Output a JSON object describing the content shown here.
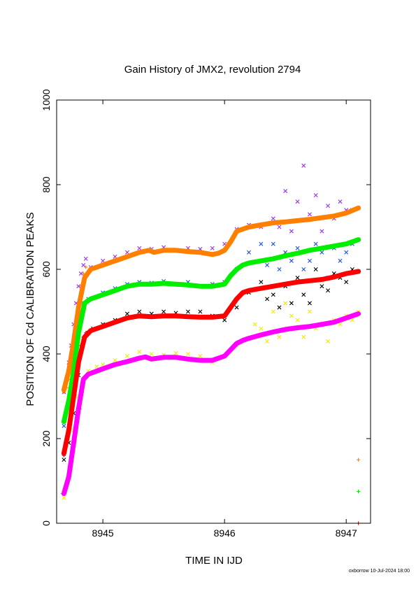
{
  "chart_data": {
    "type": "scatter",
    "title": "Gain History of JMX2, revolution 2794",
    "xlabel": "TIME IN IJD",
    "ylabel": "POSITION OF Cd CALIBRATION PEAKS",
    "xlim": [
      8944.62,
      8947.2
    ],
    "ylim": [
      0,
      1000
    ],
    "xticks": [
      {
        "value": 8945,
        "label": "8945"
      },
      {
        "value": 8946,
        "label": "8946"
      },
      {
        "value": 8947,
        "label": "8947"
      }
    ],
    "yticks": [
      {
        "value": 0,
        "label": "0"
      },
      {
        "value": 200,
        "label": "200"
      },
      {
        "value": 400,
        "label": "400"
      },
      {
        "value": 600,
        "label": "600"
      },
      {
        "value": 800,
        "label": "800"
      },
      {
        "value": 1000,
        "label": "1000"
      }
    ],
    "grid": false,
    "legend": "none",
    "series": [
      {
        "kind": "scatter",
        "marker": "x",
        "color": "#9a2ff0",
        "x": [
          8944.68,
          8944.7,
          8944.72,
          8944.74,
          8944.76,
          8944.78,
          8944.8,
          8944.82,
          8944.84,
          8944.86,
          8944.9,
          8945.0,
          8945.1,
          8945.2,
          8945.3,
          8945.4,
          8945.5,
          8945.6,
          8945.7,
          8945.8,
          8945.9,
          8946.0,
          8946.1,
          8946.2,
          8946.3,
          8946.4,
          8946.45,
          8946.5,
          8946.55,
          8946.6,
          8946.65,
          8946.7,
          8946.75,
          8946.8,
          8946.85,
          8946.9,
          8946.95,
          8947.0,
          8947.05,
          8947.1
        ],
        "y": [
          310,
          340,
          380,
          420,
          470,
          520,
          560,
          590,
          610,
          625,
          605,
          620,
          630,
          640,
          650,
          648,
          652,
          645,
          650,
          648,
          650,
          660,
          695,
          705,
          700,
          720,
          700,
          785,
          690,
          760,
          845,
          730,
          775,
          690,
          750,
          720,
          760,
          740,
          740,
          745
        ]
      },
      {
        "kind": "scatter",
        "marker": "x",
        "color": "#1f4fe0",
        "x": [
          8944.68,
          8944.72,
          8944.76,
          8944.8,
          8944.84,
          8944.88,
          8945.0,
          8945.1,
          8945.2,
          8945.3,
          8945.4,
          8945.5,
          8945.6,
          8945.7,
          8945.8,
          8945.9,
          8946.0,
          8946.1,
          8946.2,
          8946.3,
          8946.35,
          8946.4,
          8946.45,
          8946.5,
          8946.55,
          8946.6,
          8946.65,
          8946.7,
          8946.75,
          8946.8,
          8946.85,
          8946.9,
          8946.95,
          8947.0,
          8947.05,
          8947.1
        ],
        "y": [
          230,
          280,
          360,
          460,
          520,
          530,
          545,
          555,
          565,
          570,
          568,
          572,
          565,
          570,
          560,
          565,
          570,
          600,
          640,
          660,
          610,
          660,
          600,
          640,
          620,
          650,
          600,
          620,
          660,
          640,
          580,
          650,
          620,
          640,
          660,
          670
        ]
      },
      {
        "kind": "scatter",
        "marker": "x",
        "color": "#000000",
        "x": [
          8944.68,
          8944.72,
          8944.76,
          8944.8,
          8944.84,
          8944.88,
          8944.92,
          8945.0,
          8945.1,
          8945.2,
          8945.3,
          8945.4,
          8945.5,
          8945.6,
          8945.7,
          8945.8,
          8945.9,
          8946.0,
          8946.1,
          8946.2,
          8946.3,
          8946.35,
          8946.4,
          8946.45,
          8946.5,
          8946.55,
          8946.6,
          8946.65,
          8946.7,
          8946.75,
          8946.8,
          8946.85,
          8946.9,
          8946.95,
          8947.0,
          8947.05,
          8947.1
        ],
        "y": [
          150,
          190,
          260,
          350,
          430,
          450,
          460,
          470,
          480,
          495,
          500,
          495,
          500,
          497,
          500,
          500,
          490,
          480,
          510,
          545,
          570,
          530,
          540,
          510,
          560,
          520,
          580,
          540,
          520,
          600,
          560,
          550,
          590,
          580,
          570,
          600,
          595
        ]
      },
      {
        "kind": "scatter",
        "marker": "x",
        "color": "#f0ea00",
        "x": [
          8944.68,
          8944.72,
          8944.76,
          8944.8,
          8944.84,
          8944.88,
          8944.95,
          8945.0,
          8945.1,
          8945.2,
          8945.3,
          8945.4,
          8945.5,
          8945.6,
          8945.7,
          8945.8,
          8945.9,
          8946.0,
          8946.1,
          8946.2,
          8946.25,
          8946.3,
          8946.35,
          8946.4,
          8946.45,
          8946.5,
          8946.55,
          8946.6,
          8946.65,
          8946.7,
          8946.75,
          8946.8,
          8946.85,
          8946.9,
          8946.95,
          8947.0,
          8947.05,
          8947.1
        ],
        "y": [
          60,
          120,
          220,
          300,
          340,
          360,
          370,
          375,
          385,
          395,
          405,
          400,
          398,
          402,
          400,
          395,
          380,
          395,
          420,
          435,
          470,
          460,
          430,
          500,
          440,
          520,
          490,
          480,
          440,
          500,
          460,
          470,
          430,
          480,
          470,
          490,
          480,
          500
        ]
      },
      {
        "kind": "scatter",
        "marker": "+",
        "color": "#ff8000",
        "x": [
          8944.68,
          8944.7,
          8944.72,
          8944.74,
          8944.76,
          8944.78,
          8944.8,
          8944.82,
          8944.84,
          8944.86,
          8947.1
        ],
        "y": [
          310,
          320,
          340,
          370,
          420,
          470,
          520,
          560,
          590,
          605,
          150
        ]
      },
      {
        "kind": "scatter",
        "marker": "+",
        "color": "#00e000",
        "x": [
          8944.68,
          8944.7,
          8944.72,
          8944.74,
          8944.76,
          8944.78,
          8944.8,
          8944.82,
          8944.84,
          8944.86,
          8947.1
        ],
        "y": [
          240,
          260,
          290,
          340,
          380,
          430,
          470,
          500,
          520,
          525,
          75
        ]
      },
      {
        "kind": "scatter",
        "marker": "+",
        "color": "#ff0000",
        "x": [
          8944.68,
          8944.7,
          8944.72,
          8944.74,
          8944.76,
          8944.78,
          8944.8,
          8944.82,
          8944.84,
          8944.86,
          8947.1
        ],
        "y": [
          160,
          190,
          220,
          250,
          290,
          330,
          380,
          420,
          440,
          450,
          0
        ]
      },
      {
        "kind": "scatter",
        "marker": "+",
        "color": "#ff00ff",
        "x": [
          8944.67,
          8944.69,
          8944.71,
          8944.73,
          8944.75,
          8944.77,
          8944.79,
          8944.81,
          8944.83,
          8944.85,
          8944.87
        ],
        "y": [
          70,
          80,
          100,
          130,
          170,
          210,
          240,
          270,
          310,
          340,
          350
        ]
      },
      {
        "kind": "line",
        "color": "#ff8000",
        "x": [
          8944.68,
          8944.72,
          8944.76,
          8944.8,
          8944.85,
          8944.9,
          8945.0,
          8945.1,
          8945.2,
          8945.3,
          8945.38,
          8945.42,
          8945.5,
          8945.6,
          8945.7,
          8945.8,
          8945.9,
          8945.95,
          8946.0,
          8946.05,
          8946.1,
          8946.15,
          8946.2,
          8946.3,
          8946.4,
          8946.5,
          8946.6,
          8946.7,
          8946.8,
          8946.9,
          8947.0,
          8947.1
        ],
        "y": [
          315,
          360,
          430,
          510,
          580,
          600,
          610,
          620,
          630,
          640,
          645,
          640,
          645,
          645,
          642,
          640,
          635,
          638,
          645,
          665,
          690,
          695,
          700,
          705,
          710,
          712,
          715,
          718,
          722,
          726,
          733,
          745
        ]
      },
      {
        "kind": "line",
        "color": "#00ee00",
        "x": [
          8944.68,
          8944.72,
          8944.76,
          8944.8,
          8944.85,
          8944.9,
          8945.0,
          8945.1,
          8945.2,
          8945.3,
          8945.4,
          8945.5,
          8945.6,
          8945.7,
          8945.8,
          8945.9,
          8946.0,
          8946.05,
          8946.1,
          8946.15,
          8946.2,
          8946.3,
          8946.4,
          8946.5,
          8946.6,
          8946.7,
          8946.8,
          8946.9,
          8947.0,
          8947.1
        ],
        "y": [
          240,
          290,
          360,
          450,
          520,
          530,
          540,
          550,
          560,
          565,
          565,
          567,
          565,
          563,
          560,
          560,
          565,
          585,
          600,
          610,
          615,
          620,
          625,
          632,
          638,
          645,
          650,
          655,
          660,
          670
        ]
      },
      {
        "kind": "line",
        "color": "#ff0000",
        "x": [
          8944.68,
          8944.72,
          8944.76,
          8944.8,
          8944.85,
          8944.9,
          8945.0,
          8945.1,
          8945.2,
          8945.3,
          8945.4,
          8945.5,
          8945.6,
          8945.7,
          8945.8,
          8945.9,
          8946.0,
          8946.05,
          8946.1,
          8946.15,
          8946.2,
          8946.3,
          8946.4,
          8946.5,
          8946.6,
          8946.7,
          8946.8,
          8946.9,
          8947.0,
          8947.1
        ],
        "y": [
          165,
          220,
          300,
          380,
          440,
          455,
          465,
          475,
          485,
          490,
          488,
          490,
          490,
          488,
          487,
          487,
          490,
          510,
          530,
          545,
          550,
          555,
          560,
          565,
          570,
          573,
          576,
          582,
          590,
          595
        ]
      },
      {
        "kind": "line",
        "color": "#ff00ff",
        "x": [
          8944.68,
          8944.72,
          8944.76,
          8944.8,
          8944.84,
          8944.88,
          8945.0,
          8945.1,
          8945.2,
          8945.3,
          8945.35,
          8945.4,
          8945.5,
          8945.6,
          8945.7,
          8945.8,
          8945.9,
          8946.0,
          8946.05,
          8946.1,
          8946.15,
          8946.2,
          8946.3,
          8946.4,
          8946.5,
          8946.6,
          8946.7,
          8946.8,
          8946.9,
          8947.0,
          8947.1
        ],
        "y": [
          70,
          110,
          190,
          270,
          340,
          352,
          365,
          375,
          382,
          390,
          393,
          388,
          392,
          392,
          388,
          385,
          385,
          395,
          410,
          425,
          432,
          437,
          445,
          452,
          458,
          462,
          465,
          470,
          475,
          485,
          495
        ]
      }
    ]
  },
  "footer": {
    "credit": "oxborrow 10-Jul-2024 18:00"
  }
}
